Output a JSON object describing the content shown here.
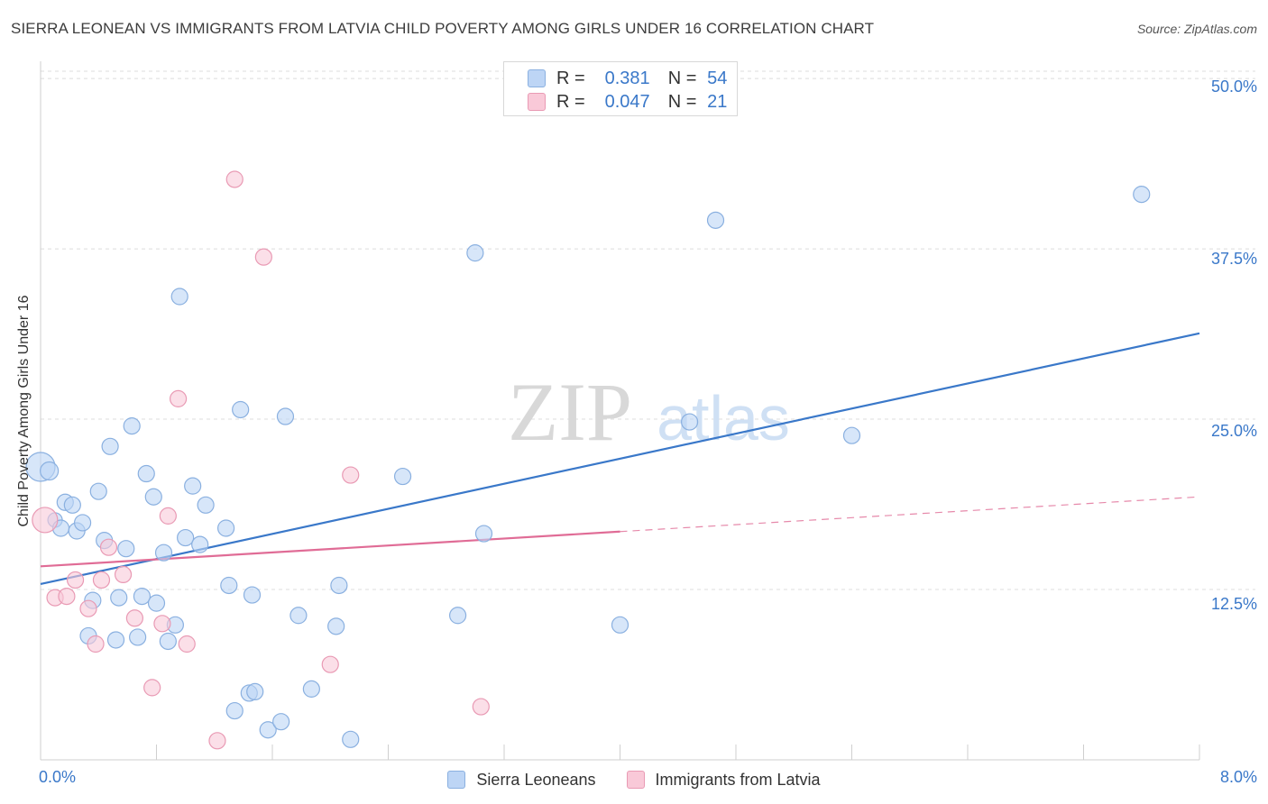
{
  "title": "SIERRA LEONEAN VS IMMIGRANTS FROM LATVIA CHILD POVERTY AMONG GIRLS UNDER 16 CORRELATION CHART",
  "source": "Source: ZipAtlas.com",
  "watermark": {
    "zip": "ZIP",
    "atlas": "atlas"
  },
  "legend_top": {
    "blue": {
      "r_label": "R =",
      "r_value": "0.381",
      "n_label": "N =",
      "n_value": "54"
    },
    "pink": {
      "r_label": "R =",
      "r_value": "0.047",
      "n_label": "N =",
      "n_value": "21"
    }
  },
  "legend_bottom": {
    "blue": "Sierra Leoneans",
    "pink": "Immigrants from Latvia"
  },
  "colors": {
    "blue_fill": "#bdd5f5",
    "blue_stroke": "#8ab0e0",
    "blue_line": "#3a78c9",
    "pink_fill": "#f9c9d8",
    "pink_stroke": "#e99ab4",
    "pink_line": "#e06c96",
    "axis_label": "#3a78c9",
    "grid": "#dcdcdc"
  },
  "chart_data": {
    "type": "scatter",
    "title": "SIERRA LEONEAN VS IMMIGRANTS FROM LATVIA CHILD POVERTY AMONG GIRLS UNDER 16 CORRELATION CHART",
    "xlabel": "",
    "ylabel": "Child Poverty Among Girls Under 16",
    "xlim": [
      0,
      8
    ],
    "ylim": [
      0,
      51
    ],
    "x_tick_labels": {
      "min": "0.0%",
      "max": "8.0%"
    },
    "y_ticks": [
      {
        "value": 12.5,
        "label": "12.5%"
      },
      {
        "value": 25,
        "label": "25.0%"
      },
      {
        "value": 37.5,
        "label": "37.5%"
      },
      {
        "value": 50,
        "label": "50.0%"
      }
    ],
    "series": [
      {
        "name": "Sierra Leoneans",
        "color": "blue",
        "r": 0.381,
        "n": 54,
        "trend": {
          "x0": 0,
          "y0": 12.9,
          "x1": 8,
          "y1": 31.3,
          "dashed_from": null
        },
        "points": [
          [
            0.0,
            21.5,
            16
          ],
          [
            0.06,
            21.2,
            10
          ],
          [
            0.1,
            17.6,
            8
          ],
          [
            0.14,
            17.0,
            9
          ],
          [
            0.17,
            18.9,
            9
          ],
          [
            0.22,
            18.7,
            9
          ],
          [
            0.25,
            16.8,
            9
          ],
          [
            0.29,
            17.4,
            9
          ],
          [
            0.33,
            9.1,
            9
          ],
          [
            0.36,
            11.7,
            9
          ],
          [
            0.4,
            19.7,
            9
          ],
          [
            0.44,
            16.1,
            9
          ],
          [
            0.48,
            23.0,
            9
          ],
          [
            0.52,
            8.8,
            9
          ],
          [
            0.54,
            11.9,
            9
          ],
          [
            0.59,
            15.5,
            9
          ],
          [
            0.63,
            24.5,
            9
          ],
          [
            0.67,
            9.0,
            9
          ],
          [
            0.7,
            12.0,
            9
          ],
          [
            0.73,
            21.0,
            9
          ],
          [
            0.78,
            19.3,
            9
          ],
          [
            0.8,
            11.5,
            9
          ],
          [
            0.85,
            15.2,
            9
          ],
          [
            0.88,
            8.7,
            9
          ],
          [
            0.93,
            9.9,
            9
          ],
          [
            0.96,
            34.0,
            9
          ],
          [
            1.0,
            16.3,
            9
          ],
          [
            1.05,
            20.1,
            9
          ],
          [
            1.1,
            15.8,
            9
          ],
          [
            1.14,
            18.7,
            9
          ],
          [
            1.28,
            17.0,
            9
          ],
          [
            1.3,
            12.8,
            9
          ],
          [
            1.34,
            3.6,
            9
          ],
          [
            1.38,
            25.7,
            9
          ],
          [
            1.44,
            4.9,
            9
          ],
          [
            1.46,
            12.1,
            9
          ],
          [
            1.48,
            5.0,
            9
          ],
          [
            1.57,
            2.2,
            9
          ],
          [
            1.66,
            2.8,
            9
          ],
          [
            1.69,
            25.2,
            9
          ],
          [
            1.78,
            10.6,
            9
          ],
          [
            1.87,
            5.2,
            9
          ],
          [
            2.04,
            9.8,
            9
          ],
          [
            2.06,
            12.8,
            9
          ],
          [
            2.14,
            1.5,
            9
          ],
          [
            2.5,
            20.8,
            9
          ],
          [
            2.88,
            10.6,
            9
          ],
          [
            3.0,
            37.2,
            9
          ],
          [
            3.06,
            16.6,
            9
          ],
          [
            4.0,
            9.9,
            9
          ],
          [
            4.48,
            24.8,
            9
          ],
          [
            4.66,
            39.6,
            9
          ],
          [
            5.6,
            23.8,
            9
          ],
          [
            7.6,
            41.5,
            9
          ]
        ]
      },
      {
        "name": "Immigrants from Latvia",
        "color": "pink",
        "r": 0.047,
        "n": 21,
        "trend": {
          "x0": 0,
          "y0": 14.2,
          "x1": 8,
          "y1": 19.3,
          "dashed_from": 4.0
        },
        "points": [
          [
            0.03,
            17.6,
            14
          ],
          [
            0.1,
            11.9,
            9
          ],
          [
            0.18,
            12.0,
            9
          ],
          [
            0.24,
            13.2,
            9
          ],
          [
            0.33,
            11.1,
            9
          ],
          [
            0.38,
            8.5,
            9
          ],
          [
            0.42,
            13.2,
            9
          ],
          [
            0.47,
            15.6,
            9
          ],
          [
            0.57,
            13.6,
            9
          ],
          [
            0.65,
            10.4,
            9
          ],
          [
            0.77,
            5.3,
            9
          ],
          [
            0.84,
            10.0,
            9
          ],
          [
            0.88,
            17.9,
            9
          ],
          [
            0.95,
            26.5,
            9
          ],
          [
            1.01,
            8.5,
            9
          ],
          [
            1.22,
            1.4,
            9
          ],
          [
            1.34,
            42.6,
            9
          ],
          [
            1.54,
            36.9,
            9
          ],
          [
            2.0,
            7.0,
            9
          ],
          [
            2.14,
            20.9,
            9
          ],
          [
            3.04,
            3.9,
            9
          ]
        ]
      }
    ]
  }
}
